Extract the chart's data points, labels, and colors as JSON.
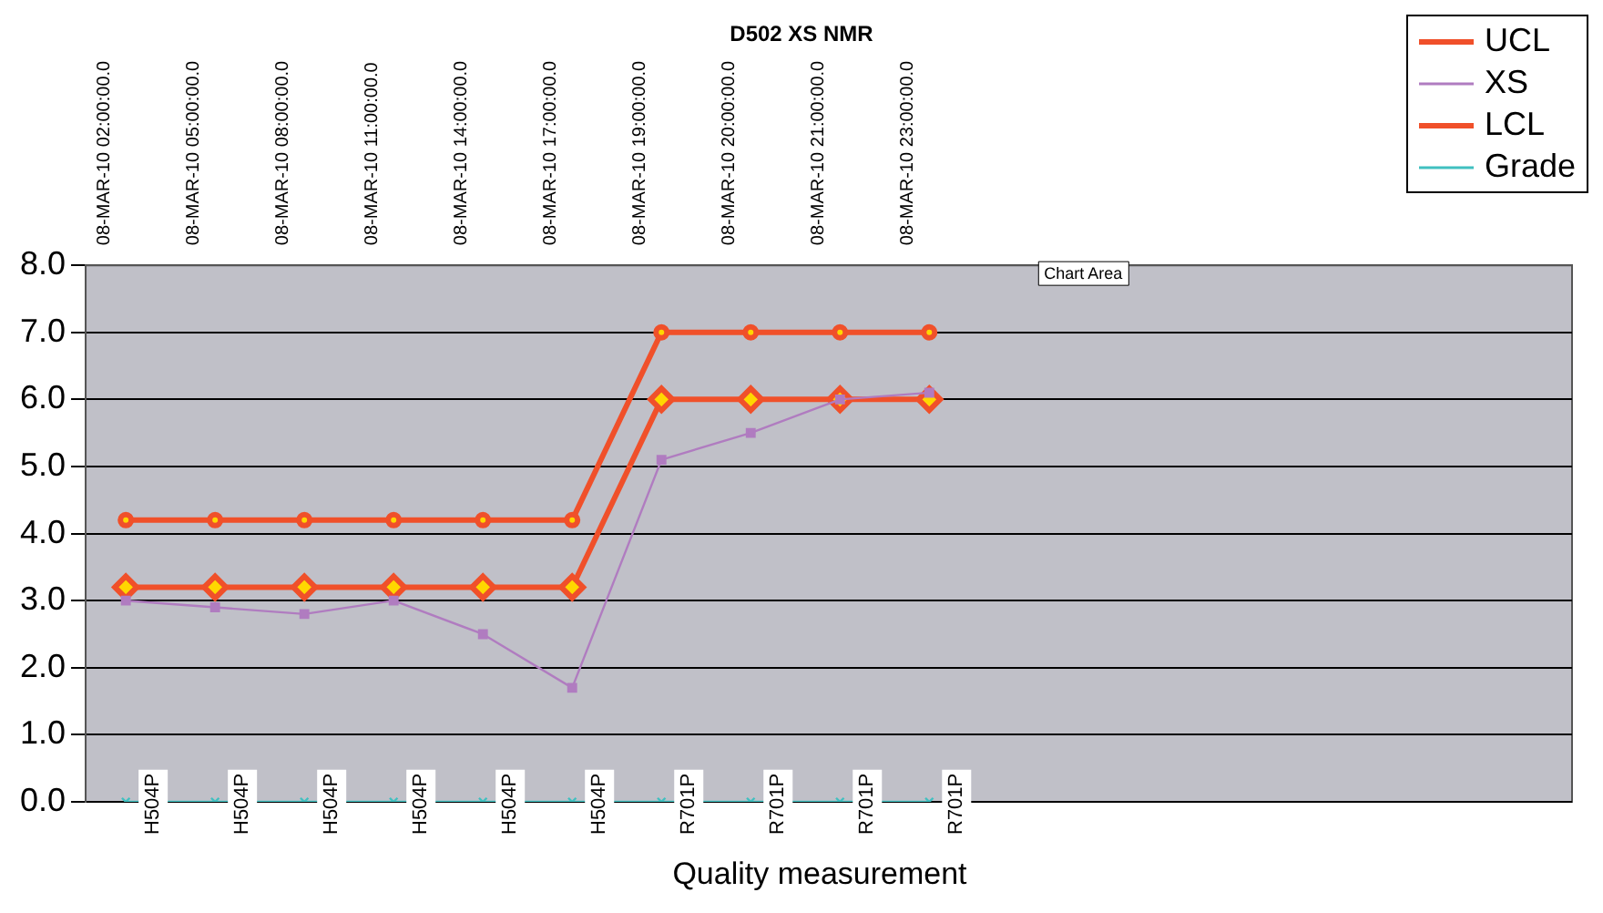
{
  "chart_data": {
    "type": "line",
    "title": "D502 XS NMR",
    "xlabel": "Quality measurement",
    "categories": [
      "08-MAR-10 02:00:00.0",
      "08-MAR-10 05:00:00.0",
      "08-MAR-10 08:00:00.0",
      "08-MAR-10 11:00:00.0",
      "08-MAR-10 14:00:00.0",
      "08-MAR-10 17:00:00.0",
      "08-MAR-10 19:00:00.0",
      "08-MAR-10 20:00:00.0",
      "08-MAR-10 21:00:00.0",
      "08-MAR-10 23:00:00.0"
    ],
    "series": [
      {
        "name": "UCL",
        "color": "#f0502a",
        "marker": "circle",
        "values": [
          4.2,
          4.2,
          4.2,
          4.2,
          4.2,
          4.2,
          7.0,
          7.0,
          7.0,
          7.0
        ]
      },
      {
        "name": "XS",
        "color": "#b07cc0",
        "marker": "square",
        "values": [
          3.0,
          2.9,
          2.8,
          3.0,
          2.5,
          1.7,
          5.1,
          5.5,
          6.0,
          6.1
        ]
      },
      {
        "name": "LCL",
        "color": "#f0502a",
        "marker": "diamond",
        "values": [
          3.2,
          3.2,
          3.2,
          3.2,
          3.2,
          3.2,
          6.0,
          6.0,
          6.0,
          6.0
        ]
      },
      {
        "name": "Grade",
        "color": "#40c0c0",
        "marker": "cross",
        "values": [
          0,
          0,
          0,
          0,
          0,
          0,
          0,
          0,
          0,
          0
        ],
        "value_labels": [
          "H504P",
          "H504P",
          "H504P",
          "H504P",
          "H504P",
          "H504P",
          "R701P",
          "R701P",
          "R701P",
          "R701P"
        ]
      }
    ],
    "ylim": [
      0,
      8
    ],
    "yticks": [
      {
        "value": 0,
        "label": "0.0"
      },
      {
        "value": 1,
        "label": "1.0"
      },
      {
        "value": 2,
        "label": "2.0"
      },
      {
        "value": 3,
        "label": "3.0"
      },
      {
        "value": 4,
        "label": "4.0"
      },
      {
        "value": 5,
        "label": "5.0"
      },
      {
        "value": 6,
        "label": "6.0"
      },
      {
        "value": 7,
        "label": "7.0"
      },
      {
        "value": 8,
        "label": "8.0"
      }
    ],
    "grid": "y",
    "legend": "top right",
    "annotations": [
      "Chart Area"
    ]
  }
}
